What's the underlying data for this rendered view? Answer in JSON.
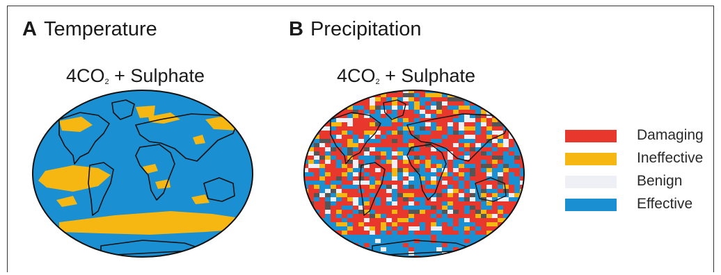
{
  "panels": [
    {
      "letter": "A",
      "label": "Temperature",
      "subtitle_prefix": "4CO",
      "subtitle_sub": "2",
      "subtitle_suffix": " + Sulphate"
    },
    {
      "letter": "B",
      "label": "Precipitation",
      "subtitle_prefix": "4CO",
      "subtitle_sub": "2",
      "subtitle_suffix": " + Sulphate"
    }
  ],
  "legend": [
    {
      "label": "Damaging",
      "color": "#e8372c"
    },
    {
      "label": "Ineffective",
      "color": "#f7b712"
    },
    {
      "label": "Benign",
      "color": "#eef0f6"
    },
    {
      "label": "Effective",
      "color": "#1a8fd1"
    }
  ],
  "colors": {
    "effective": "#1a8fd1",
    "ineffective": "#f7b712",
    "damaging": "#e8372c",
    "benign": "#eef0f6",
    "neutral": "#555555",
    "coastline": "#111111"
  }
}
